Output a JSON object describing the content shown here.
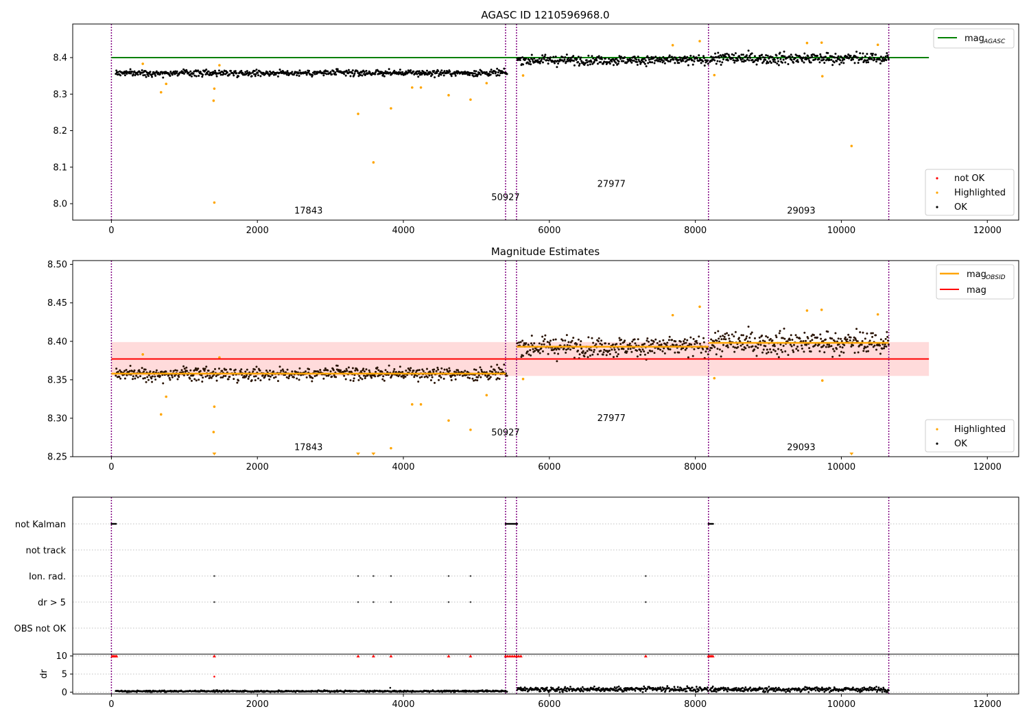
{
  "figure": {
    "title": "AGASC ID 1210596968.0",
    "colors": {
      "ok": "#000000",
      "highlighted": "#ffa500",
      "not_ok": "#ff0000",
      "mag_agasc": "#008000",
      "mag": "#ff0000",
      "mag_obsid": "#ffa500",
      "obs_boundary": "#800080",
      "band_fill": "#ffcccc"
    }
  },
  "chart_data": [
    {
      "type": "scatter",
      "title": "AGASC ID 1210596968.0",
      "xlabel": "",
      "ylabel": "",
      "xlim": [
        -530,
        12430
      ],
      "ylim": [
        7.955,
        8.492
      ],
      "xticks": [
        0,
        2000,
        4000,
        6000,
        8000,
        10000,
        12000
      ],
      "xtick_labels": [
        "0",
        "2000",
        "4000",
        "6000",
        "8000",
        "10000",
        "12000"
      ],
      "yticks": [
        8.0,
        8.1,
        8.2,
        8.3,
        8.4
      ],
      "ytick_labels": [
        "8.0",
        "8.1",
        "8.2",
        "8.3",
        "8.4"
      ],
      "obs_boundaries": [
        0,
        5400,
        5550,
        8180,
        10650
      ],
      "obs_labels": [
        {
          "text": "17843",
          "x": 2700,
          "y": 7.98
        },
        {
          "text": "50927",
          "x": 5400,
          "y": 8.017
        },
        {
          "text": "27977",
          "x": 6850,
          "y": 8.054
        },
        {
          "text": "29093",
          "x": 9450,
          "y": 7.98
        }
      ],
      "reference_line": {
        "name": "mag_AGASC",
        "y": 8.4,
        "x": [
          0,
          11200
        ]
      },
      "segments": [
        {
          "x": [
            60,
            5420
          ],
          "mean": 8.358,
          "spread": 0.006
        },
        {
          "x": [
            5560,
            8180
          ],
          "mean": 8.393,
          "spread": 0.009
        },
        {
          "x": [
            8200,
            10650
          ],
          "mean": 8.398,
          "spread": 0.011
        }
      ],
      "highlighted_points": [
        {
          "x": 1410,
          "y": 8.003
        },
        {
          "x": 3380,
          "y": 8.246
        },
        {
          "x": 3590,
          "y": 8.113
        },
        {
          "x": 3830,
          "y": 8.261
        },
        {
          "x": 1400,
          "y": 8.282
        },
        {
          "x": 1410,
          "y": 8.315
        },
        {
          "x": 680,
          "y": 8.305
        },
        {
          "x": 4620,
          "y": 8.297
        },
        {
          "x": 4920,
          "y": 8.285
        },
        {
          "x": 10140,
          "y": 8.158
        },
        {
          "x": 9740,
          "y": 8.349
        },
        {
          "x": 8060,
          "y": 8.445
        },
        {
          "x": 9530,
          "y": 8.44
        },
        {
          "x": 9730,
          "y": 8.441
        },
        {
          "x": 4120,
          "y": 8.318
        },
        {
          "x": 4240,
          "y": 8.318
        },
        {
          "x": 5140,
          "y": 8.33
        },
        {
          "x": 430,
          "y": 8.383
        },
        {
          "x": 1480,
          "y": 8.379
        },
        {
          "x": 750,
          "y": 8.328
        },
        {
          "x": 8260,
          "y": 8.352
        },
        {
          "x": 5640,
          "y": 8.351
        },
        {
          "x": 10500,
          "y": 8.435
        },
        {
          "x": 7690,
          "y": 8.434
        }
      ],
      "legend": {
        "position": "upper-right",
        "entries": [
          "mag$_{AGASC}$"
        ]
      },
      "legend_points": {
        "position": "lower-right",
        "entries": [
          "not OK",
          "Highlighted",
          "OK"
        ]
      }
    },
    {
      "type": "scatter",
      "title": "Magnitude Estimates",
      "xlabel": "",
      "ylabel": "",
      "xlim": [
        -530,
        12430
      ],
      "ylim": [
        8.25,
        8.505
      ],
      "xticks": [
        0,
        2000,
        4000,
        6000,
        8000,
        10000,
        12000
      ],
      "xtick_labels": [
        "0",
        "2000",
        "4000",
        "6000",
        "8000",
        "10000",
        "12000"
      ],
      "yticks": [
        8.25,
        8.3,
        8.35,
        8.4,
        8.45,
        8.5
      ],
      "ytick_labels": [
        "8.25",
        "8.30",
        "8.35",
        "8.40",
        "8.45",
        "8.50"
      ],
      "obs_boundaries": [
        0,
        5400,
        5550,
        8180,
        10650
      ],
      "obs_labels": [
        {
          "text": "17843",
          "x": 2700,
          "y": 8.262
        },
        {
          "text": "50927",
          "x": 5400,
          "y": 8.281
        },
        {
          "text": "27977",
          "x": 6850,
          "y": 8.3
        },
        {
          "text": "29093",
          "x": 9450,
          "y": 8.262
        }
      ],
      "mag_line": {
        "name": "mag",
        "y": 8.377,
        "x": [
          0,
          11200
        ]
      },
      "mag_band": {
        "y_low": 8.355,
        "y_high": 8.399,
        "x": [
          0,
          11200
        ]
      },
      "mag_obsid": [
        {
          "x": [
            0,
            5400
          ],
          "y": 8.358
        },
        {
          "x": [
            5550,
            8180
          ],
          "y": 8.393
        },
        {
          "x": [
            8180,
            10650
          ],
          "y": 8.398
        }
      ],
      "clipped_points_x": [
        1410,
        3380,
        3590,
        10140
      ],
      "legend": {
        "position": "upper-right",
        "entries": [
          "mag$_{OBSID}$",
          "mag"
        ]
      },
      "legend_points": {
        "position": "lower-right",
        "entries": [
          "Highlighted",
          "OK"
        ]
      }
    },
    {
      "type": "scatter",
      "title": "",
      "xlabel": "",
      "ylabel": "",
      "xlim": [
        -530,
        12430
      ],
      "flag_rows": [
        "not Kalman",
        "not track",
        "Ion. rad.",
        "dr > 5",
        "OBS not OK"
      ],
      "flag_events": {
        "not Kalman": [
          [
            0,
            70
          ],
          [
            5400,
            5560
          ],
          [
            8180,
            8250
          ]
        ],
        "not track": [],
        "Ion. rad.": [
          1410,
          3380,
          3590,
          3830,
          4620,
          4920,
          7320
        ],
        "dr > 5": [
          1410,
          3380,
          3590,
          3830,
          4620,
          4920,
          7320
        ],
        "OBS not OK": []
      },
      "obs_boundaries": [
        0,
        5400,
        5550,
        8180,
        10650
      ]
    },
    {
      "type": "scatter",
      "title": "",
      "xlabel": "",
      "ylabel": "dr",
      "xlim": [
        -530,
        12430
      ],
      "ylim": [
        -0.5,
        10.5
      ],
      "yticks": [
        0,
        5,
        10
      ],
      "ytick_labels": [
        "0",
        "5",
        "10"
      ],
      "xticks": [
        0,
        2000,
        4000,
        6000,
        8000,
        10000,
        12000
      ],
      "xtick_labels": [
        "0",
        "2000",
        "4000",
        "6000",
        "8000",
        "10000",
        "12000"
      ],
      "capped_value": 10,
      "capped_points_x": [
        10,
        30,
        50,
        70,
        1410,
        3380,
        3590,
        3830,
        4620,
        4920,
        7320,
        5400,
        5430,
        5460,
        5490,
        5520,
        5550,
        5580,
        5610,
        8180,
        8200,
        8220,
        8240
      ],
      "extra_points": [
        {
          "x": 1410,
          "y": 4.3
        },
        {
          "x": 3820,
          "y": 1.2
        }
      ],
      "segments": [
        {
          "x": [
            60,
            5420
          ],
          "mean": 0.25,
          "spread": 0.15
        },
        {
          "x": [
            5560,
            8180
          ],
          "mean": 0.8,
          "spread": 0.45
        },
        {
          "x": [
            8200,
            10650
          ],
          "mean": 0.75,
          "spread": 0.45
        }
      ],
      "obs_boundaries": [
        0,
        5400,
        5550,
        8180,
        10650
      ]
    }
  ],
  "text": {
    "title1": "AGASC ID 1210596968.0",
    "title2": "Magnitude Estimates",
    "leg1_mag": "mag",
    "leg1_sub": "AGASC",
    "leg2_mag": "mag",
    "leg2_sub": "OBSID",
    "leg2_mag2": "mag",
    "leg_notok": "not OK",
    "leg_high": "Highlighted",
    "leg_ok": "OK",
    "dr_label": "dr"
  }
}
